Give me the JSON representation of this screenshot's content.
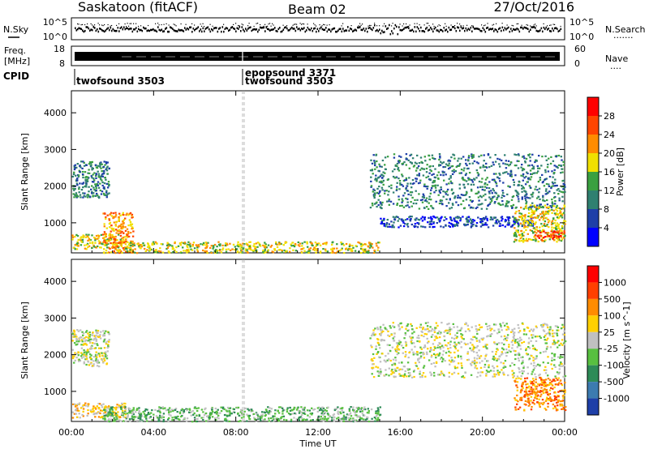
{
  "header": {
    "station": "Saskatoon (fitACF)",
    "beam": "Beam 02",
    "date": "27/Oct/2016"
  },
  "side_labels": {
    "nsky": "N.Sky",
    "freq_line1": "Freq.",
    "freq_line2": "[MHz]",
    "cpid": "CPID",
    "nsearch": "N.Search",
    "nave": "Nave",
    "dots_a": "·······",
    "dots_b": "····"
  },
  "noise_axes": {
    "left_ticks": [
      "10^5",
      "10^0"
    ],
    "right_ticks": [
      "10^5",
      "10^0"
    ]
  },
  "freq_axes": {
    "left_ticks": [
      "18",
      "8"
    ],
    "right_ticks": [
      "60",
      "0"
    ]
  },
  "cpid_entries": [
    {
      "time": "00:00",
      "label": "twofsound 3503",
      "row": "lower"
    },
    {
      "time": "08:20",
      "label": "epopsound 3371",
      "row": "upper"
    },
    {
      "time": "08:20",
      "label": "twofsound 3503",
      "row": "lower"
    }
  ],
  "chart_data": [
    {
      "type": "heatmap",
      "title": "",
      "xlabel": "Time UT",
      "ylabel": "Slant Range [km]",
      "x_ticks": [
        "00:00",
        "04:00",
        "08:00",
        "12:00",
        "16:00",
        "20:00",
        "00:00"
      ],
      "x_range_hours": [
        0,
        24
      ],
      "y_ticks": [
        1000,
        2000,
        3000,
        4000
      ],
      "ylim": [
        180,
        4600
      ],
      "colorbar": {
        "label": "Power [dB]",
        "ticks": [
          "4",
          "8",
          "12",
          "16",
          "20",
          "24",
          "28"
        ],
        "colors": [
          "#0000ff",
          "#1e3fa8",
          "#2f8070",
          "#3aa040",
          "#f0e000",
          "#ff8c00",
          "#ff4500",
          "#ff0000"
        ]
      },
      "scatter_regions": [
        {
          "t0": 0.0,
          "t1": 2.6,
          "r0": 300,
          "r1": 700,
          "level": 4
        },
        {
          "t0": 0.0,
          "t1": 1.8,
          "r0": 1700,
          "r1": 2700,
          "level": 2
        },
        {
          "t0": 1.5,
          "t1": 3.0,
          "r0": 200,
          "r1": 1300,
          "level": 5
        },
        {
          "t0": 2.6,
          "t1": 15.0,
          "r0": 200,
          "r1": 500,
          "level": 4
        },
        {
          "t0": 14.5,
          "t1": 24.0,
          "r0": 1400,
          "r1": 2900,
          "level": 2
        },
        {
          "t0": 15.0,
          "t1": 22.5,
          "r0": 900,
          "r1": 1200,
          "level": 1
        },
        {
          "t0": 21.5,
          "t1": 24.0,
          "r0": 500,
          "r1": 1500,
          "level": 4
        },
        {
          "t0": 22.5,
          "t1": 24.0,
          "r0": 550,
          "r1": 800,
          "level": 6
        }
      ]
    },
    {
      "type": "heatmap",
      "title": "",
      "xlabel": "Time UT",
      "ylabel": "Slant Range [km]",
      "x_ticks": [
        "00:00",
        "04:00",
        "08:00",
        "12:00",
        "16:00",
        "20:00",
        "00:00"
      ],
      "x_range_hours": [
        0,
        24
      ],
      "y_ticks": [
        1000,
        2000,
        3000,
        4000
      ],
      "ylim": [
        180,
        4600
      ],
      "colorbar": {
        "label": "Velocity [m s^-1]",
        "ticks": [
          "1000",
          "500",
          "100",
          "25",
          "-25",
          "-100",
          "-500",
          "-1000"
        ],
        "colors": [
          "#1e3fa8",
          "#3c7bb0",
          "#2e8b57",
          "#58c040",
          "#c0c0c0",
          "#ffd000",
          "#ff8c00",
          "#ff4000",
          "#ff0000"
        ]
      },
      "scatter_regions": [
        {
          "t0": 0.0,
          "t1": 1.8,
          "r0": 1700,
          "r1": 2700,
          "level": 4
        },
        {
          "t0": 0.0,
          "t1": 2.6,
          "r0": 300,
          "r1": 700,
          "level": 5
        },
        {
          "t0": 1.5,
          "t1": 15.0,
          "r0": 200,
          "r1": 600,
          "level": 3
        },
        {
          "t0": 14.5,
          "t1": 24.0,
          "r0": 1400,
          "r1": 2900,
          "level": 4
        },
        {
          "t0": 21.5,
          "t1": 24.0,
          "r0": 500,
          "r1": 1400,
          "level": 6
        }
      ]
    }
  ]
}
